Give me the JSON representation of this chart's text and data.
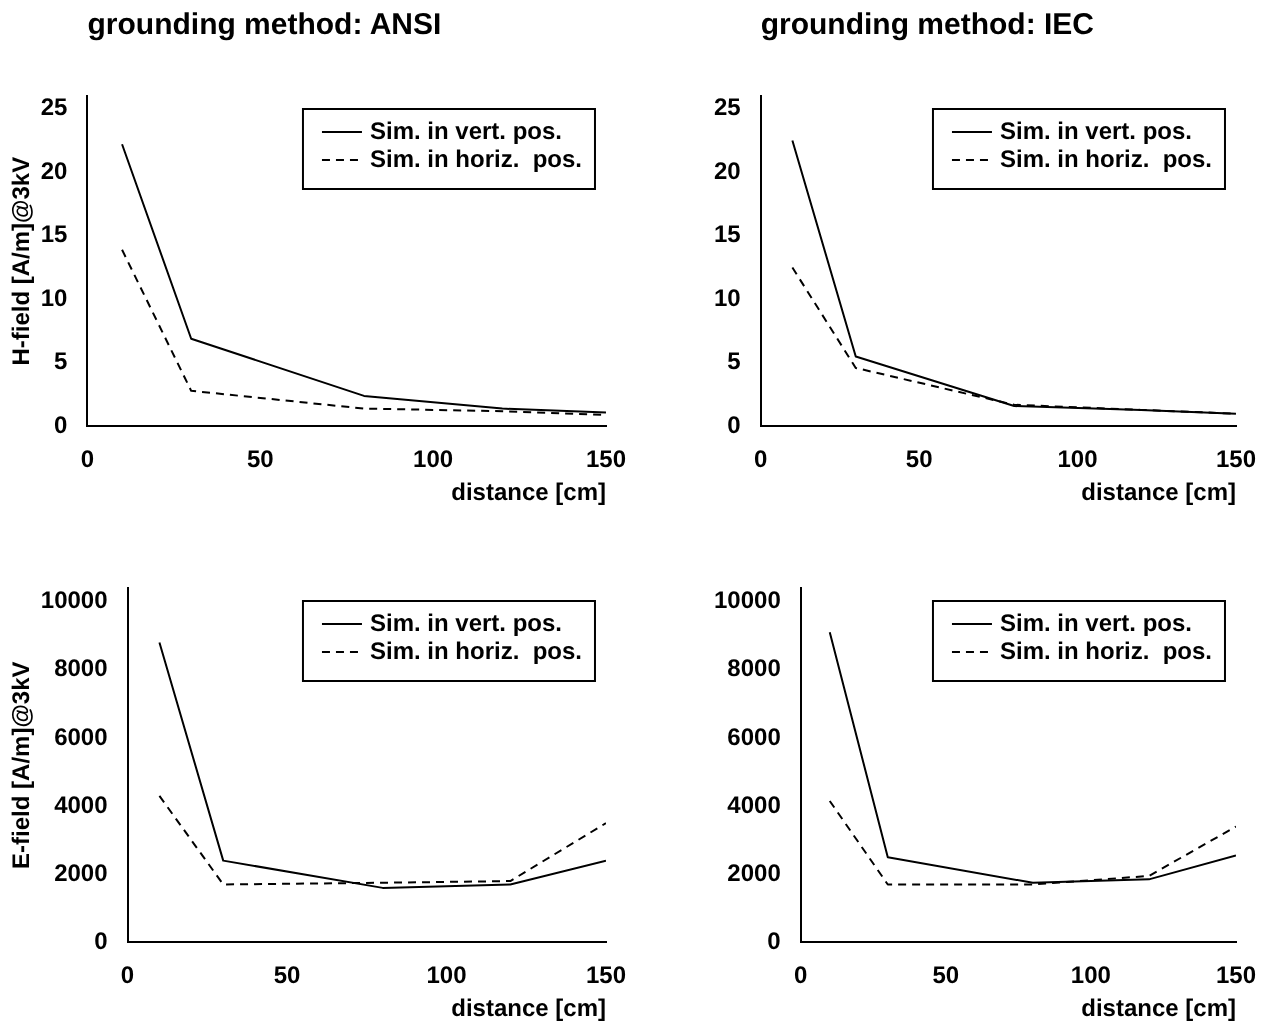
{
  "chart_data": [
    {
      "type": "line",
      "title": "grounding method: ANSI",
      "xlabel": "distance [cm]",
      "ylabel": "H-field [A/m]@3kV",
      "x": [
        10,
        30,
        80,
        120,
        150
      ],
      "xlim": [
        0,
        150
      ],
      "xticks": [
        0,
        50,
        100,
        150
      ],
      "ylim": [
        0,
        26
      ],
      "yticks": [
        0,
        5,
        10,
        15,
        20,
        25
      ],
      "grid": false,
      "legend": "top right",
      "marker": "none",
      "series": [
        {
          "name": "Sim. in vert. pos.",
          "color": "#000000",
          "line_style": "solid",
          "values": [
            22.2,
            6.9,
            2.4,
            1.4,
            1.1
          ]
        },
        {
          "name": "Sim. in horiz.  pos.",
          "color": "#000000",
          "line_style": "dashed",
          "values": [
            13.9,
            2.8,
            1.4,
            1.2,
            0.9
          ]
        }
      ]
    },
    {
      "type": "line",
      "title": "grounding method: IEC",
      "xlabel": "distance [cm]",
      "x": [
        10,
        30,
        80,
        120,
        150
      ],
      "xlim": [
        0,
        150
      ],
      "xticks": [
        0,
        50,
        100,
        150
      ],
      "ylim": [
        0,
        26
      ],
      "yticks": [
        0,
        5,
        10,
        15,
        20,
        25
      ],
      "grid": false,
      "legend": "top right",
      "marker": "none",
      "series": [
        {
          "name": "Sim. in vert. pos.",
          "color": "#000000",
          "line_style": "solid",
          "values": [
            22.5,
            5.5,
            1.6,
            1.3,
            1.0
          ]
        },
        {
          "name": "Sim. in horiz.  pos.",
          "color": "#000000",
          "line_style": "dashed",
          "values": [
            12.5,
            4.6,
            1.7,
            1.3,
            1.0
          ]
        }
      ]
    },
    {
      "type": "line",
      "xlabel": "distance [cm]",
      "ylabel": "E-field [A/m]@3kV",
      "x": [
        10,
        30,
        80,
        120,
        150
      ],
      "xlim": [
        0,
        150
      ],
      "xticks": [
        0,
        50,
        100,
        150
      ],
      "ylim": [
        0,
        10400
      ],
      "yticks": [
        0,
        2000,
        4000,
        6000,
        8000,
        10000
      ],
      "grid": false,
      "legend": "top right",
      "marker": "none",
      "series": [
        {
          "name": "Sim. in vert. pos.",
          "color": "#000000",
          "line_style": "solid",
          "values": [
            8800,
            2400,
            1600,
            1700,
            2400
          ]
        },
        {
          "name": "Sim. in horiz.  pos.",
          "color": "#000000",
          "line_style": "dashed",
          "values": [
            4300,
            1700,
            1750,
            1800,
            3500
          ]
        }
      ]
    },
    {
      "type": "line",
      "xlabel": "distance [cm]",
      "x": [
        10,
        30,
        80,
        120,
        150
      ],
      "xlim": [
        0,
        150
      ],
      "xticks": [
        0,
        50,
        100,
        150
      ],
      "ylim": [
        0,
        10400
      ],
      "yticks": [
        0,
        2000,
        4000,
        6000,
        8000,
        10000
      ],
      "grid": false,
      "legend": "top right",
      "marker": "none",
      "series": [
        {
          "name": "Sim. in vert. pos.",
          "color": "#000000",
          "line_style": "solid",
          "values": [
            9100,
            2500,
            1750,
            1850,
            2550
          ]
        },
        {
          "name": "Sim. in horiz.  pos.",
          "color": "#000000",
          "line_style": "dashed",
          "values": [
            4150,
            1700,
            1700,
            1950,
            3400
          ]
        }
      ]
    }
  ]
}
